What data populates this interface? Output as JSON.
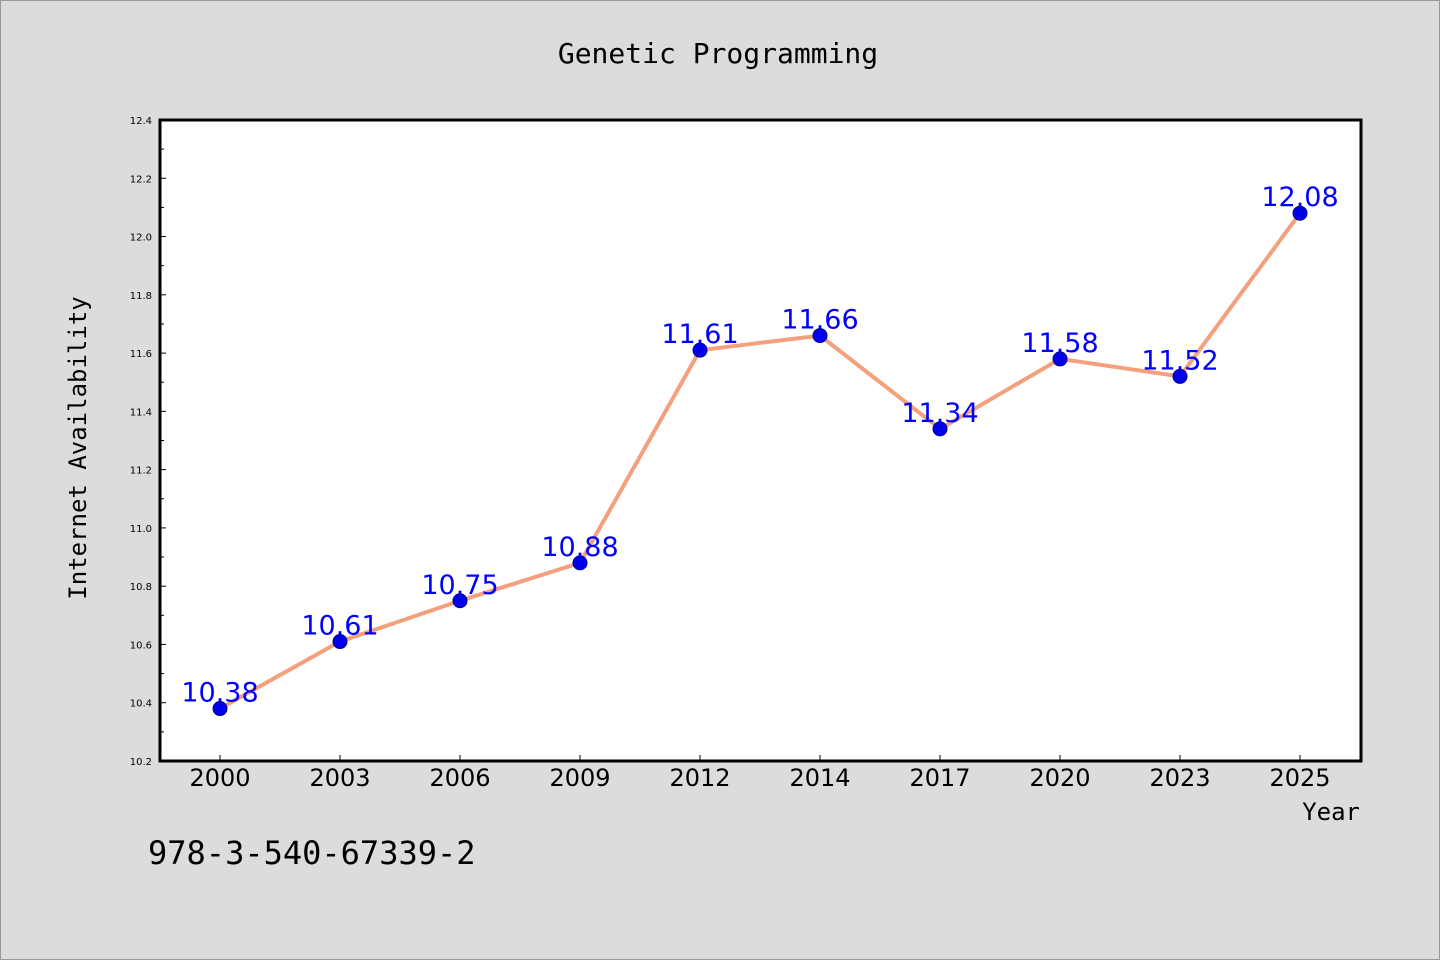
{
  "chart_data": {
    "type": "line",
    "title": "Genetic Programming",
    "xlabel": "Year",
    "ylabel": "Internet Availability",
    "categories": [
      "2000",
      "2003",
      "2006",
      "2009",
      "2012",
      "2014",
      "2017",
      "2020",
      "2023",
      "2025"
    ],
    "series": [
      {
        "values": [
          10.38,
          10.61,
          10.75,
          10.88,
          11.61,
          11.66,
          11.34,
          11.58,
          11.52,
          12.08
        ],
        "data_labels": [
          "10.38",
          "10.61",
          "10.75",
          "10.88",
          "11.61",
          "11.66",
          "11.34",
          "11.58",
          "11.52",
          "12.08"
        ],
        "line_color": "#f4a07c",
        "marker_color": "#0000ee",
        "label_color": "#0000ff"
      }
    ],
    "ylim": [
      10.2,
      12.4
    ],
    "yticks": [
      "10.2",
      "10.4",
      "10.6",
      "10.8",
      "11.0",
      "11.2",
      "11.4",
      "11.6",
      "11.8",
      "12.0",
      "12.2",
      "12.4"
    ],
    "grid": false,
    "legend": "none"
  },
  "annotation": "978-3-540-67339-2",
  "colors": {
    "background": "#dcdcdc",
    "plot_background": "#ffffff",
    "axis": "#000000"
  }
}
